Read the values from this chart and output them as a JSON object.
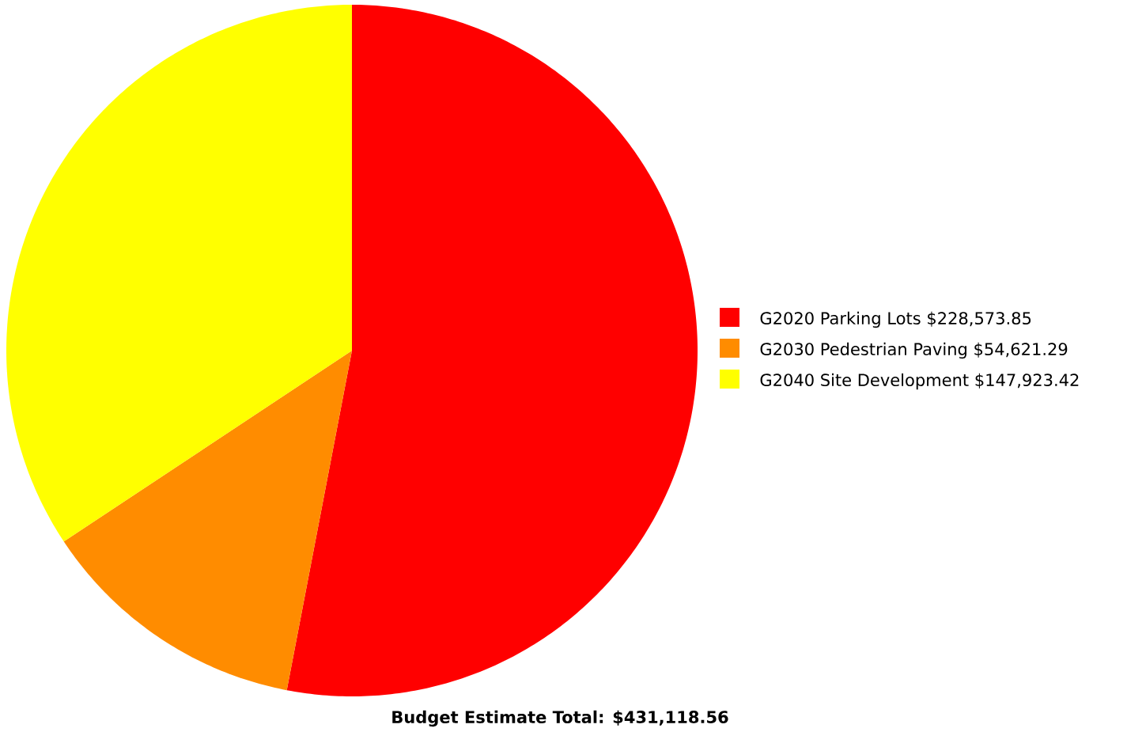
{
  "chart_data": {
    "type": "pie",
    "categories": [
      "G2020 Parking Lots",
      "G2030 Pedestrian Paving",
      "G2040 Site Development"
    ],
    "values": [
      228573.85,
      54621.29,
      147923.42
    ],
    "value_labels": [
      "$228,573.85",
      "$54,621.29",
      "$147,923.42"
    ],
    "colors": [
      "#ff0000",
      "#ff8c00",
      "#ffff00"
    ],
    "legend": "right",
    "annotations": [
      "Budget Estimate Total: $431,118.56"
    ]
  }
}
